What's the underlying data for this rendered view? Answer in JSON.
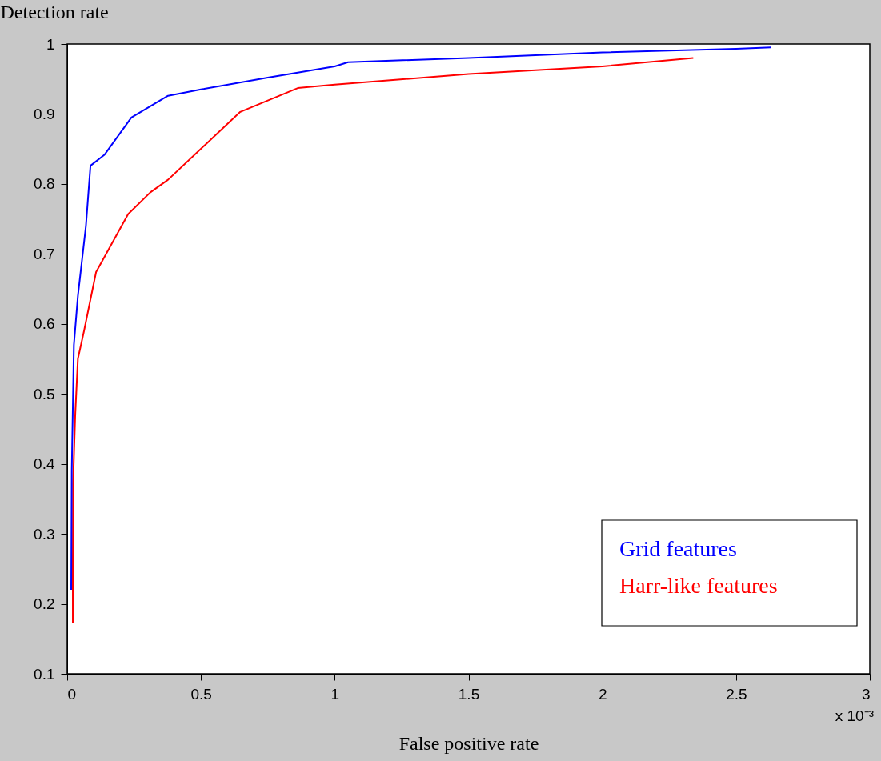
{
  "chart_data": {
    "type": "line",
    "xlabel": "False positive rate",
    "ylabel": "Detection rate",
    "annotations": [
      "x 10⁻³"
    ],
    "xlim": [
      0,
      3
    ],
    "xticks": [
      0,
      0.5,
      1,
      1.5,
      2,
      2.5,
      3
    ],
    "ylim": [
      0.1,
      1
    ],
    "yticks": [
      0.1,
      0.2,
      0.3,
      0.4,
      0.5,
      0.6,
      0.7,
      0.8,
      0.9,
      1
    ],
    "legend": "bottom right",
    "grid": false,
    "series": [
      {
        "name": "Grid features",
        "color": "#0000ff",
        "x": [
          0.015,
          0.017,
          0.025,
          0.04,
          0.07,
          0.087,
          0.14,
          0.24,
          0.377,
          0.5,
          0.75,
          1.0,
          1.05,
          1.5,
          2.0,
          2.5,
          2.63
        ],
        "values": [
          0.22,
          0.39,
          0.57,
          0.64,
          0.74,
          0.826,
          0.842,
          0.895,
          0.926,
          0.935,
          0.952,
          0.968,
          0.974,
          0.98,
          0.988,
          0.993,
          0.995
        ]
      },
      {
        "name": "Harr-like features",
        "color": "#ff0000",
        "x": [
          0.021,
          0.021,
          0.022,
          0.03,
          0.04,
          0.063,
          0.108,
          0.228,
          0.311,
          0.377,
          0.647,
          0.862,
          1.0,
          1.5,
          2.0,
          2.34
        ],
        "values": [
          0.173,
          0.26,
          0.373,
          0.47,
          0.55,
          0.59,
          0.674,
          0.757,
          0.788,
          0.806,
          0.903,
          0.937,
          0.942,
          0.957,
          0.968,
          0.98
        ]
      }
    ]
  }
}
